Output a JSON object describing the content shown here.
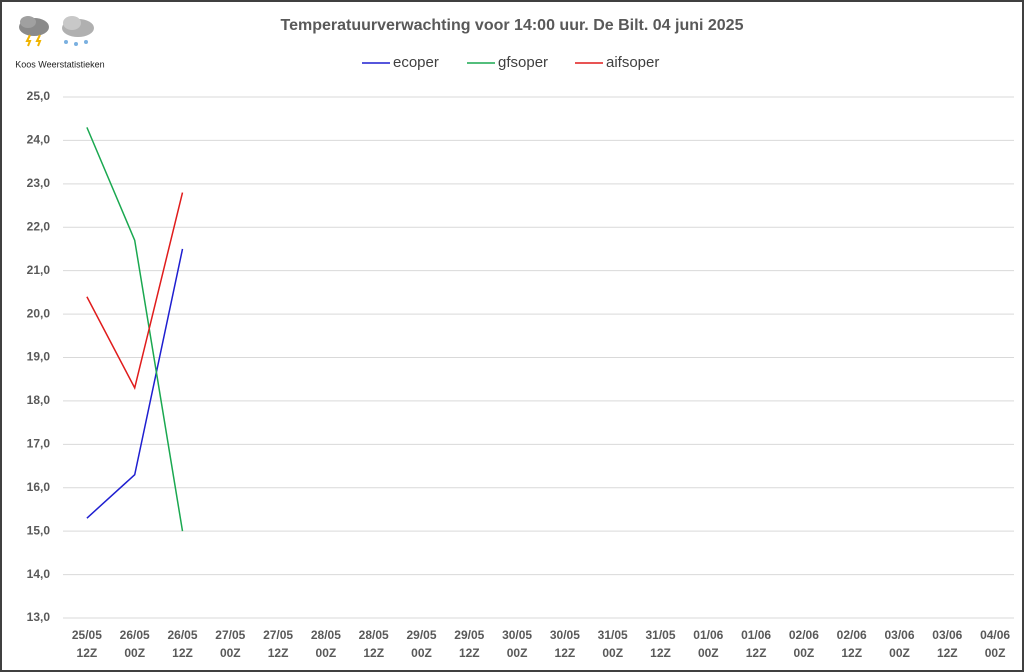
{
  "chart_data": {
    "type": "line",
    "title": "Temperatuurverwachting voor 14:00 uur. De Bilt. 04 juni 2025",
    "credit": "Koos Weerstatistieken",
    "categories": [
      [
        "25/05",
        "12Z"
      ],
      [
        "26/05",
        "00Z"
      ],
      [
        "26/05",
        "12Z"
      ],
      [
        "27/05",
        "00Z"
      ],
      [
        "27/05",
        "12Z"
      ],
      [
        "28/05",
        "00Z"
      ],
      [
        "28/05",
        "12Z"
      ],
      [
        "29/05",
        "00Z"
      ],
      [
        "29/05",
        "12Z"
      ],
      [
        "30/05",
        "00Z"
      ],
      [
        "30/05",
        "12Z"
      ],
      [
        "31/05",
        "00Z"
      ],
      [
        "31/05",
        "12Z"
      ],
      [
        "01/06",
        "00Z"
      ],
      [
        "01/06",
        "12Z"
      ],
      [
        "02/06",
        "00Z"
      ],
      [
        "02/06",
        "12Z"
      ],
      [
        "03/06",
        "00Z"
      ],
      [
        "03/06",
        "12Z"
      ],
      [
        "04/06",
        "00Z"
      ]
    ],
    "series": [
      {
        "name": "ecoper",
        "color": "#1f1fd0",
        "values": [
          15.3,
          16.3,
          21.5,
          null,
          null,
          null,
          null,
          null,
          null,
          null,
          null,
          null,
          null,
          null,
          null,
          null,
          null,
          null,
          null,
          null
        ]
      },
      {
        "name": "gfsoper",
        "color": "#1aa850",
        "values": [
          24.3,
          21.7,
          15.0,
          null,
          null,
          null,
          null,
          null,
          null,
          null,
          null,
          null,
          null,
          null,
          null,
          null,
          null,
          null,
          null,
          null
        ]
      },
      {
        "name": "aifsoper",
        "color": "#e01c1c",
        "values": [
          20.4,
          18.3,
          22.8,
          null,
          null,
          null,
          null,
          null,
          null,
          null,
          null,
          null,
          null,
          null,
          null,
          null,
          null,
          null,
          null,
          null
        ]
      }
    ],
    "ylim": [
      13,
      25
    ],
    "yticks": [
      {
        "value": 13,
        "label": "13,0"
      },
      {
        "value": 14,
        "label": "14,0"
      },
      {
        "value": 15,
        "label": "15,0"
      },
      {
        "value": 16,
        "label": "16,0"
      },
      {
        "value": 17,
        "label": "17,0"
      },
      {
        "value": 18,
        "label": "18,0"
      },
      {
        "value": 19,
        "label": "19,0"
      },
      {
        "value": 20,
        "label": "20,0"
      },
      {
        "value": 21,
        "label": "21,0"
      },
      {
        "value": 22,
        "label": "22,0"
      },
      {
        "value": 23,
        "label": "23,0"
      },
      {
        "value": 24,
        "label": "24,0"
      },
      {
        "value": 25,
        "label": "25,0"
      }
    ],
    "grid": true,
    "legend": "top"
  }
}
